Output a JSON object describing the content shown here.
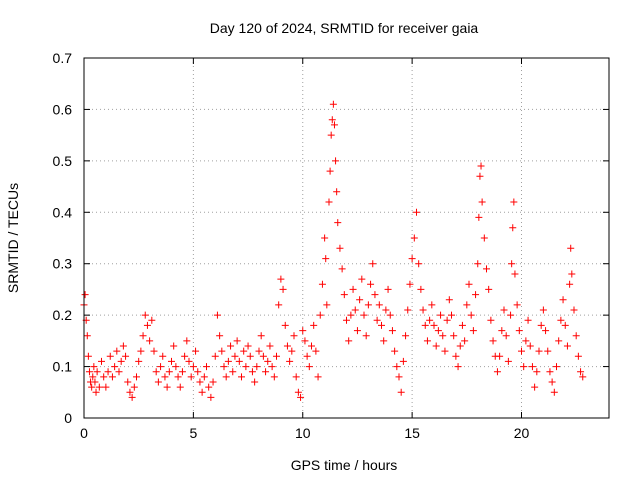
{
  "chart_data": {
    "type": "scatter",
    "title": "Day 120 of 2024, SRMTID for receiver gaia",
    "xlabel": "GPS time / hours",
    "ylabel": "SRMTID / TECUs",
    "xlim": [
      0,
      24
    ],
    "ylim": [
      0,
      0.7
    ],
    "xticks": [
      0,
      5,
      10,
      15,
      20
    ],
    "xtick_labels": [
      "0",
      "5",
      "10",
      "15",
      "20"
    ],
    "yticks": [
      0,
      0.1,
      0.2,
      0.3,
      0.4,
      0.5,
      0.6,
      0.7
    ],
    "ytick_labels": [
      "0",
      "0.1",
      "0.2",
      "0.3",
      "0.4",
      "0.5",
      "0.6",
      "0.7"
    ],
    "grid": true,
    "marker": "+",
    "colors": {
      "series": "#ff0000",
      "grid": "#a0a0a0",
      "axis": "#000000"
    },
    "series": [
      {
        "name": "SRMTID",
        "points": [
          [
            0.0,
            0.22
          ],
          [
            0.05,
            0.24
          ],
          [
            0.1,
            0.19
          ],
          [
            0.15,
            0.16
          ],
          [
            0.2,
            0.12
          ],
          [
            0.25,
            0.09
          ],
          [
            0.3,
            0.07
          ],
          [
            0.35,
            0.06
          ],
          [
            0.4,
            0.08
          ],
          [
            0.45,
            0.1
          ],
          [
            0.5,
            0.07
          ],
          [
            0.55,
            0.05
          ],
          [
            0.6,
            0.09
          ],
          [
            0.7,
            0.06
          ],
          [
            0.8,
            0.11
          ],
          [
            0.9,
            0.08
          ],
          [
            1.0,
            0.06
          ],
          [
            1.1,
            0.09
          ],
          [
            1.2,
            0.12
          ],
          [
            1.3,
            0.08
          ],
          [
            1.4,
            0.1
          ],
          [
            1.5,
            0.13
          ],
          [
            1.6,
            0.09
          ],
          [
            1.7,
            0.11
          ],
          [
            1.8,
            0.14
          ],
          [
            1.9,
            0.12
          ],
          [
            2.0,
            0.07
          ],
          [
            2.1,
            0.05
          ],
          [
            2.2,
            0.04
          ],
          [
            2.3,
            0.06
          ],
          [
            2.4,
            0.08
          ],
          [
            2.5,
            0.11
          ],
          [
            2.6,
            0.13
          ],
          [
            2.7,
            0.16
          ],
          [
            2.8,
            0.2
          ],
          [
            2.9,
            0.18
          ],
          [
            3.0,
            0.15
          ],
          [
            3.1,
            0.19
          ],
          [
            3.2,
            0.13
          ],
          [
            3.3,
            0.09
          ],
          [
            3.4,
            0.07
          ],
          [
            3.5,
            0.1
          ],
          [
            3.6,
            0.12
          ],
          [
            3.7,
            0.08
          ],
          [
            3.8,
            0.06
          ],
          [
            3.9,
            0.09
          ],
          [
            4.0,
            0.11
          ],
          [
            4.1,
            0.14
          ],
          [
            4.2,
            0.1
          ],
          [
            4.3,
            0.08
          ],
          [
            4.4,
            0.06
          ],
          [
            4.5,
            0.09
          ],
          [
            4.6,
            0.12
          ],
          [
            4.7,
            0.15
          ],
          [
            4.8,
            0.11
          ],
          [
            4.9,
            0.08
          ],
          [
            5.0,
            0.1
          ],
          [
            5.1,
            0.13
          ],
          [
            5.2,
            0.09
          ],
          [
            5.3,
            0.07
          ],
          [
            5.4,
            0.05
          ],
          [
            5.5,
            0.08
          ],
          [
            5.6,
            0.1
          ],
          [
            5.7,
            0.06
          ],
          [
            5.8,
            0.04
          ],
          [
            5.9,
            0.07
          ],
          [
            6.0,
            0.12
          ],
          [
            6.1,
            0.2
          ],
          [
            6.2,
            0.16
          ],
          [
            6.3,
            0.13
          ],
          [
            6.4,
            0.1
          ],
          [
            6.5,
            0.08
          ],
          [
            6.6,
            0.11
          ],
          [
            6.7,
            0.14
          ],
          [
            6.8,
            0.09
          ],
          [
            6.9,
            0.12
          ],
          [
            7.0,
            0.15
          ],
          [
            7.1,
            0.11
          ],
          [
            7.2,
            0.08
          ],
          [
            7.3,
            0.13
          ],
          [
            7.4,
            0.1
          ],
          [
            7.5,
            0.14
          ],
          [
            7.6,
            0.12
          ],
          [
            7.7,
            0.09
          ],
          [
            7.8,
            0.07
          ],
          [
            7.9,
            0.1
          ],
          [
            8.0,
            0.13
          ],
          [
            8.1,
            0.16
          ],
          [
            8.2,
            0.12
          ],
          [
            8.3,
            0.09
          ],
          [
            8.4,
            0.11
          ],
          [
            8.5,
            0.14
          ],
          [
            8.6,
            0.1
          ],
          [
            8.7,
            0.08
          ],
          [
            8.8,
            0.12
          ],
          [
            8.9,
            0.22
          ],
          [
            9.0,
            0.27
          ],
          [
            9.1,
            0.25
          ],
          [
            9.2,
            0.18
          ],
          [
            9.3,
            0.14
          ],
          [
            9.4,
            0.11
          ],
          [
            9.5,
            0.13
          ],
          [
            9.6,
            0.16
          ],
          [
            9.7,
            0.08
          ],
          [
            9.8,
            0.05
          ],
          [
            9.9,
            0.04
          ],
          [
            10.0,
            0.17
          ],
          [
            10.1,
            0.15
          ],
          [
            10.2,
            0.12
          ],
          [
            10.3,
            0.1
          ],
          [
            10.4,
            0.14
          ],
          [
            10.5,
            0.18
          ],
          [
            10.6,
            0.13
          ],
          [
            10.7,
            0.08
          ],
          [
            10.8,
            0.2
          ],
          [
            10.9,
            0.26
          ],
          [
            11.0,
            0.35
          ],
          [
            11.05,
            0.31
          ],
          [
            11.1,
            0.22
          ],
          [
            11.2,
            0.42
          ],
          [
            11.25,
            0.48
          ],
          [
            11.3,
            0.55
          ],
          [
            11.35,
            0.58
          ],
          [
            11.4,
            0.61
          ],
          [
            11.45,
            0.57
          ],
          [
            11.5,
            0.5
          ],
          [
            11.55,
            0.44
          ],
          [
            11.6,
            0.38
          ],
          [
            11.7,
            0.33
          ],
          [
            11.8,
            0.29
          ],
          [
            11.9,
            0.24
          ],
          [
            12.0,
            0.19
          ],
          [
            12.1,
            0.15
          ],
          [
            12.2,
            0.2
          ],
          [
            12.3,
            0.25
          ],
          [
            12.4,
            0.21
          ],
          [
            12.5,
            0.17
          ],
          [
            12.6,
            0.23
          ],
          [
            12.7,
            0.27
          ],
          [
            12.8,
            0.2
          ],
          [
            12.9,
            0.16
          ],
          [
            13.0,
            0.22
          ],
          [
            13.1,
            0.26
          ],
          [
            13.2,
            0.3
          ],
          [
            13.3,
            0.24
          ],
          [
            13.4,
            0.19
          ],
          [
            13.5,
            0.22
          ],
          [
            13.6,
            0.18
          ],
          [
            13.7,
            0.15
          ],
          [
            13.8,
            0.21
          ],
          [
            13.9,
            0.25
          ],
          [
            14.0,
            0.2
          ],
          [
            14.1,
            0.17
          ],
          [
            14.2,
            0.13
          ],
          [
            14.3,
            0.1
          ],
          [
            14.4,
            0.08
          ],
          [
            14.5,
            0.05
          ],
          [
            14.6,
            0.11
          ],
          [
            14.7,
            0.16
          ],
          [
            14.8,
            0.21
          ],
          [
            14.9,
            0.26
          ],
          [
            15.0,
            0.31
          ],
          [
            15.1,
            0.35
          ],
          [
            15.2,
            0.4
          ],
          [
            15.3,
            0.3
          ],
          [
            15.4,
            0.25
          ],
          [
            15.5,
            0.21
          ],
          [
            15.6,
            0.18
          ],
          [
            15.7,
            0.15
          ],
          [
            15.8,
            0.19
          ],
          [
            15.9,
            0.22
          ],
          [
            16.0,
            0.18
          ],
          [
            16.1,
            0.14
          ],
          [
            16.2,
            0.17
          ],
          [
            16.3,
            0.2
          ],
          [
            16.4,
            0.16
          ],
          [
            16.5,
            0.13
          ],
          [
            16.6,
            0.19
          ],
          [
            16.7,
            0.23
          ],
          [
            16.8,
            0.2
          ],
          [
            16.9,
            0.16
          ],
          [
            17.0,
            0.12
          ],
          [
            17.1,
            0.1
          ],
          [
            17.2,
            0.14
          ],
          [
            17.3,
            0.18
          ],
          [
            17.4,
            0.15
          ],
          [
            17.5,
            0.22
          ],
          [
            17.6,
            0.26
          ],
          [
            17.7,
            0.2
          ],
          [
            17.8,
            0.17
          ],
          [
            17.9,
            0.24
          ],
          [
            18.0,
            0.3
          ],
          [
            18.05,
            0.39
          ],
          [
            18.1,
            0.47
          ],
          [
            18.15,
            0.49
          ],
          [
            18.2,
            0.42
          ],
          [
            18.3,
            0.35
          ],
          [
            18.4,
            0.29
          ],
          [
            18.5,
            0.25
          ],
          [
            18.6,
            0.19
          ],
          [
            18.7,
            0.15
          ],
          [
            18.8,
            0.12
          ],
          [
            18.9,
            0.09
          ],
          [
            19.0,
            0.12
          ],
          [
            19.1,
            0.17
          ],
          [
            19.2,
            0.21
          ],
          [
            19.3,
            0.16
          ],
          [
            19.4,
            0.11
          ],
          [
            19.5,
            0.2
          ],
          [
            19.55,
            0.3
          ],
          [
            19.6,
            0.37
          ],
          [
            19.65,
            0.42
          ],
          [
            19.7,
            0.28
          ],
          [
            19.8,
            0.22
          ],
          [
            19.9,
            0.17
          ],
          [
            20.0,
            0.13
          ],
          [
            20.1,
            0.1
          ],
          [
            20.2,
            0.15
          ],
          [
            20.3,
            0.19
          ],
          [
            20.4,
            0.14
          ],
          [
            20.5,
            0.1
          ],
          [
            20.6,
            0.06
          ],
          [
            20.7,
            0.09
          ],
          [
            20.8,
            0.13
          ],
          [
            20.9,
            0.18
          ],
          [
            21.0,
            0.21
          ],
          [
            21.1,
            0.17
          ],
          [
            21.2,
            0.13
          ],
          [
            21.3,
            0.09
          ],
          [
            21.4,
            0.07
          ],
          [
            21.5,
            0.05
          ],
          [
            21.6,
            0.1
          ],
          [
            21.7,
            0.15
          ],
          [
            21.8,
            0.19
          ],
          [
            21.9,
            0.23
          ],
          [
            22.0,
            0.18
          ],
          [
            22.1,
            0.14
          ],
          [
            22.2,
            0.26
          ],
          [
            22.25,
            0.33
          ],
          [
            22.3,
            0.28
          ],
          [
            22.4,
            0.21
          ],
          [
            22.5,
            0.16
          ],
          [
            22.6,
            0.12
          ],
          [
            22.7,
            0.09
          ],
          [
            22.8,
            0.08
          ]
        ]
      }
    ]
  }
}
